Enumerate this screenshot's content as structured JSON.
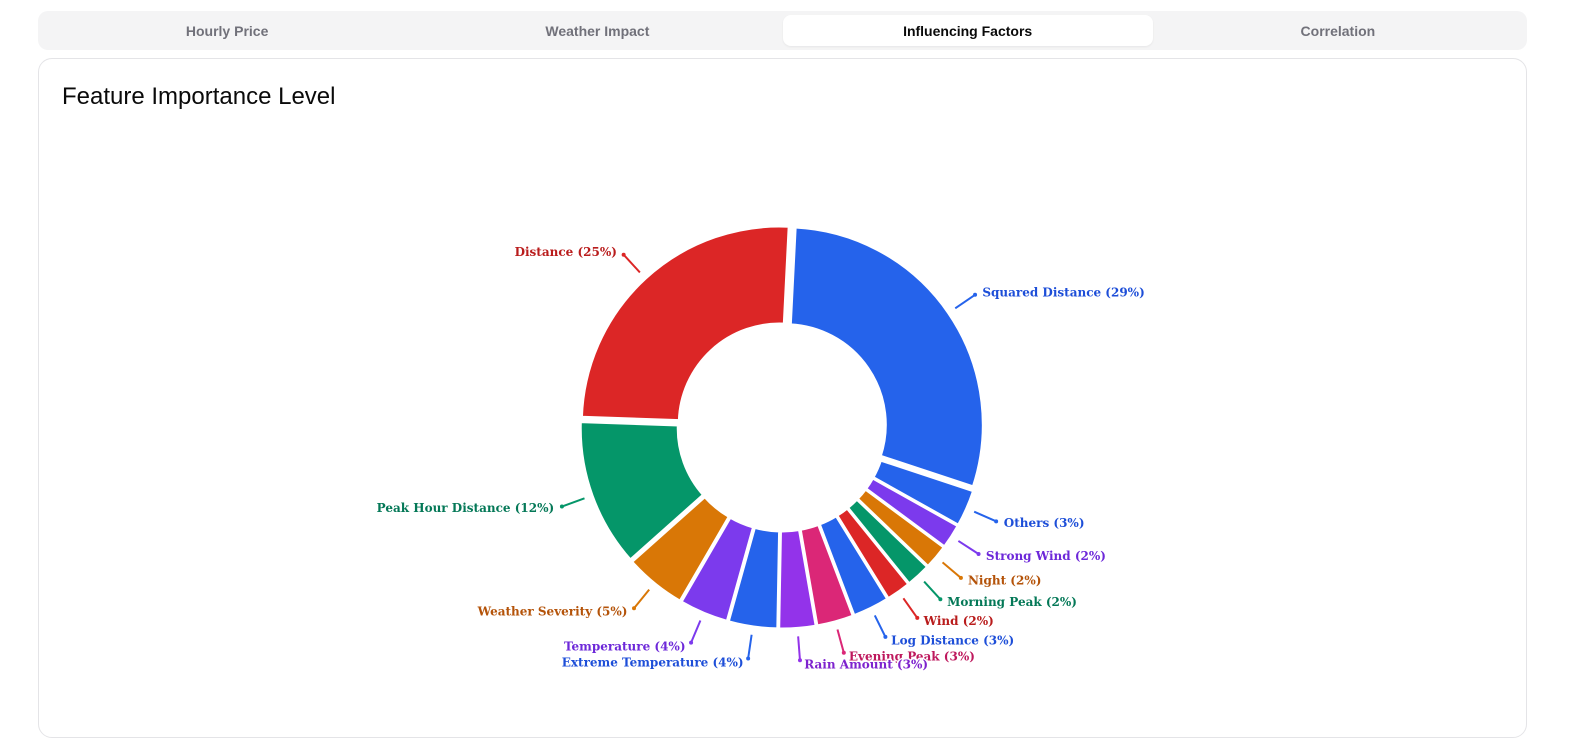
{
  "tabs": [
    {
      "label": "Hourly Price",
      "active": false
    },
    {
      "label": "Weather Impact",
      "active": false
    },
    {
      "label": "Influencing Factors",
      "active": true
    },
    {
      "label": "Correlation",
      "active": false
    }
  ],
  "card": {
    "title": "Feature Importance Level"
  },
  "chart_data": {
    "type": "pie",
    "title": "Feature Importance Level",
    "donut": true,
    "slices": [
      {
        "label": "Squared Distance (29%)",
        "value": 29,
        "color": "#2563eb",
        "label_color": "#1d4ed8"
      },
      {
        "label": "Others (3%)",
        "value": 3,
        "color": "#2563eb",
        "label_color": "#1d4ed8"
      },
      {
        "label": "Strong Wind (2%)",
        "value": 2,
        "color": "#7c3aed",
        "label_color": "#6d28d9"
      },
      {
        "label": "Night (2%)",
        "value": 2,
        "color": "#d97706",
        "label_color": "#b45309"
      },
      {
        "label": "Morning Peak (2%)",
        "value": 2,
        "color": "#059669",
        "label_color": "#047857"
      },
      {
        "label": "Wind (2%)",
        "value": 2,
        "color": "#dc2626",
        "label_color": "#b91c1c"
      },
      {
        "label": "Log Distance (3%)",
        "value": 3,
        "color": "#2563eb",
        "label_color": "#1d4ed8"
      },
      {
        "label": "Evening Peak (3%)",
        "value": 3,
        "color": "#db2777",
        "label_color": "#be185d"
      },
      {
        "label": "Rain Amount (3%)",
        "value": 3,
        "color": "#9333ea",
        "label_color": "#7e22ce"
      },
      {
        "label": "Extreme Temperature (4%)",
        "value": 4,
        "color": "#2563eb",
        "label_color": "#1d4ed8"
      },
      {
        "label": "Temperature (4%)",
        "value": 4,
        "color": "#7c3aed",
        "label_color": "#6d28d9"
      },
      {
        "label": "Weather Severity (5%)",
        "value": 5,
        "color": "#d97706",
        "label_color": "#b45309"
      },
      {
        "label": "Peak Hour Distance (12%)",
        "value": 12,
        "color": "#059669",
        "label_color": "#047857"
      },
      {
        "label": "Distance (25%)",
        "value": 25,
        "color": "#dc2626",
        "label_color": "#b91c1c"
      }
    ]
  }
}
